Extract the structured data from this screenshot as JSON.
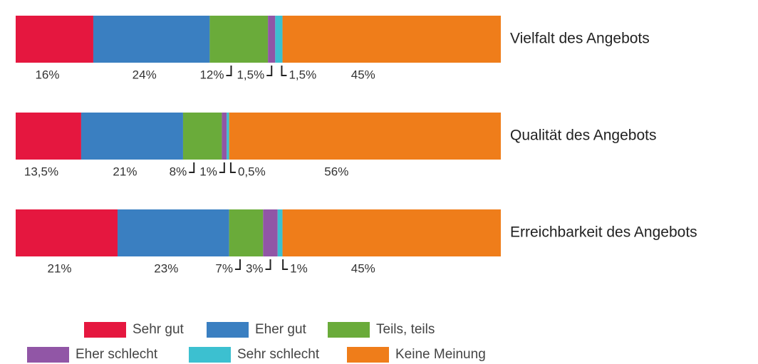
{
  "chart_data": {
    "type": "stacked_bar_horizontal",
    "categories": [
      "Vielfalt des Angebots",
      "Qualität des Angebots",
      "Erreichbarkeit des Angebots"
    ],
    "xlim": [
      0,
      100
    ],
    "series": [
      {
        "name": "Sehr gut",
        "color": "#e5173f",
        "values": [
          16,
          13.5,
          21
        ],
        "value_labels": [
          "16%",
          "13,5%",
          "21%"
        ]
      },
      {
        "name": "Eher gut",
        "color": "#3a7fc1",
        "values": [
          24,
          21,
          23
        ],
        "value_labels": [
          "24%",
          "21%",
          "23%"
        ]
      },
      {
        "name": "Teils, teils",
        "color": "#6aab3a",
        "values": [
          12,
          8,
          7
        ],
        "value_labels": [
          "12%",
          "8%",
          "7%"
        ]
      },
      {
        "name": "Eher schlecht",
        "color": "#9156a6",
        "values": [
          1.5,
          1,
          3
        ],
        "value_labels": [
          "1,5%",
          "1%",
          "3%"
        ]
      },
      {
        "name": "Sehr schlecht",
        "color": "#3cc0d0",
        "values": [
          1.5,
          0.5,
          1
        ],
        "value_labels": [
          "1,5%",
          "0,5%",
          "1%"
        ]
      },
      {
        "name": "Keine Meinung",
        "color": "#ef7d1a",
        "values": [
          45,
          56,
          45
        ],
        "value_labels": [
          "45%",
          "56%",
          "45%"
        ]
      }
    ]
  }
}
